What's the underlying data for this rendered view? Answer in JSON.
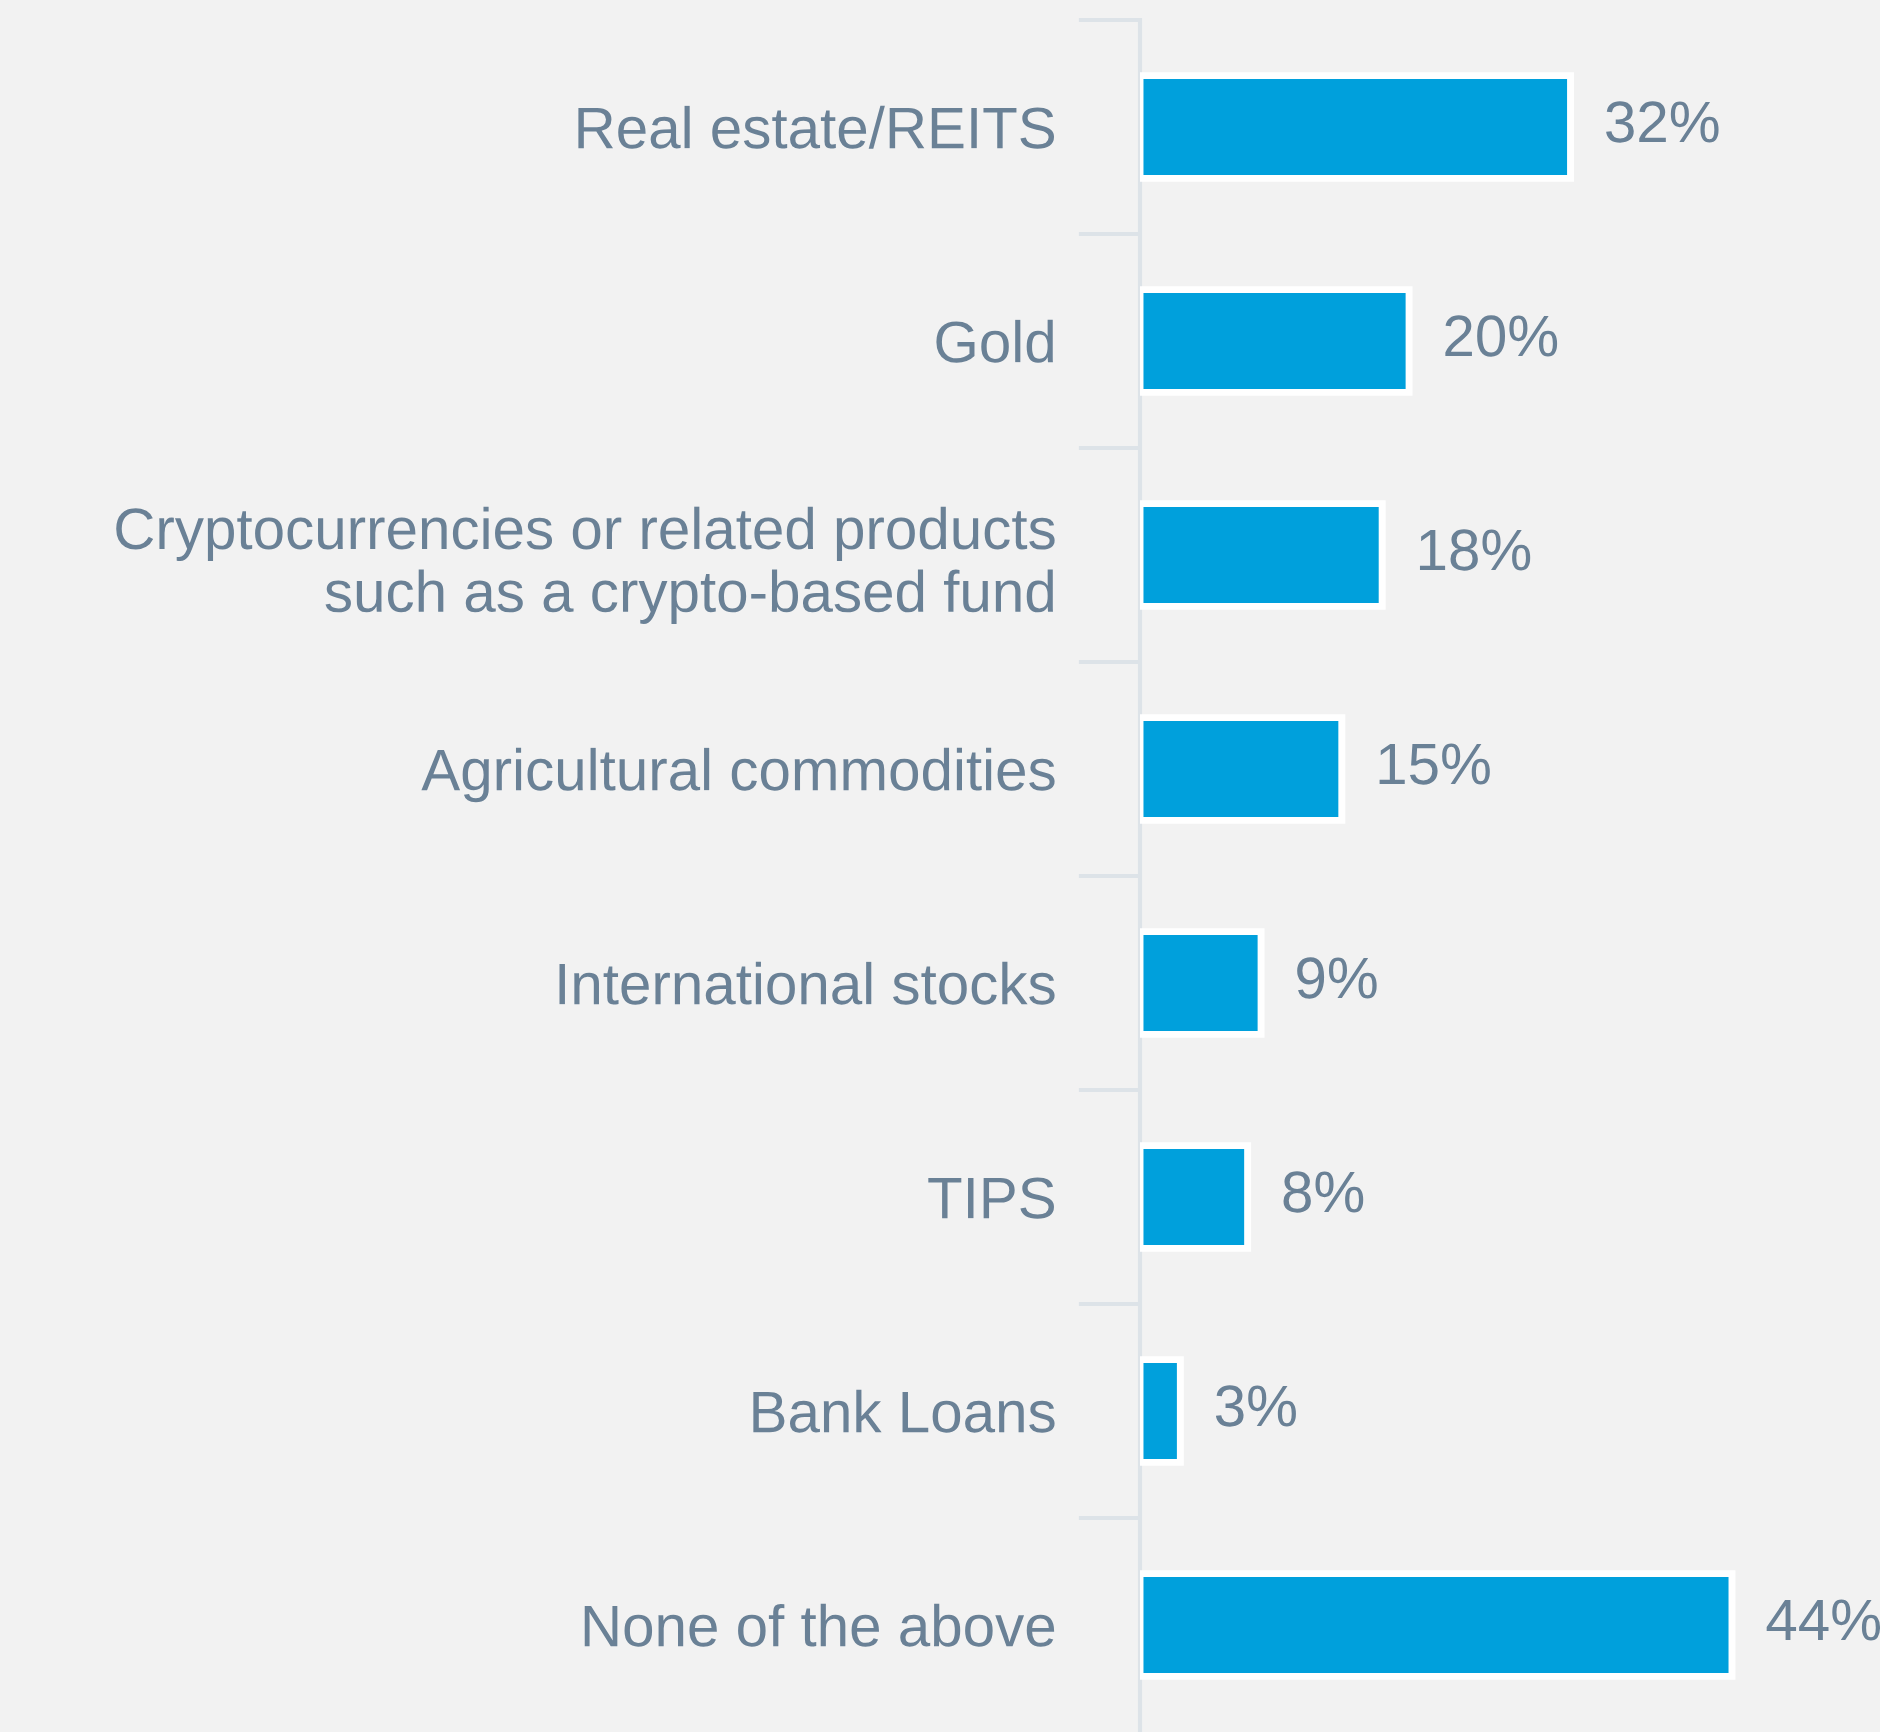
{
  "chart_data": {
    "type": "bar",
    "orientation": "horizontal",
    "categories": [
      "Real estate/REITS",
      "Gold",
      "Cryptocurrencies or related products\nsuch as a crypto-based fund",
      "Agricultural commodities",
      "International stocks",
      "TIPS",
      "Bank Loans",
      "None of the above"
    ],
    "values": [
      32,
      20,
      18,
      15,
      9,
      8,
      3,
      44
    ],
    "value_labels": [
      "32%",
      "20%",
      "18%",
      "15%",
      "9%",
      "8%",
      "3%",
      "44%"
    ],
    "color": "#00a0dc",
    "grid": false,
    "legend": false
  }
}
